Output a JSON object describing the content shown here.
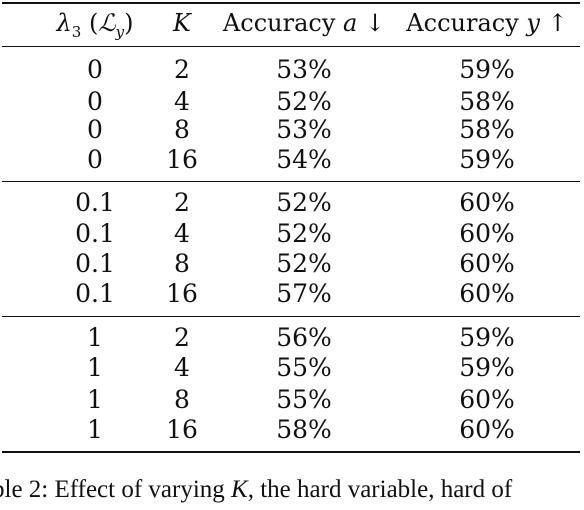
{
  "table": {
    "headers": {
      "col0_lambda": "λ",
      "col0_sub": "3",
      "col0_paren_open": "(",
      "col0_L": "ℒ",
      "col0_L_sub": "y",
      "col0_paren_close": ")",
      "col1": "K",
      "col2_text": "Accuracy",
      "col2_var": "a",
      "col2_arrow": "↓",
      "col3_text": "Accuracy",
      "col3_var": "y",
      "col3_arrow": "↑"
    },
    "groups": [
      {
        "rows": [
          [
            "0",
            "2",
            "53%",
            "59%"
          ],
          [
            "0",
            "4",
            "52%",
            "58%"
          ],
          [
            "0",
            "8",
            "53%",
            "58%"
          ],
          [
            "0",
            "16",
            "54%",
            "59%"
          ]
        ]
      },
      {
        "rows": [
          [
            "0.1",
            "2",
            "52%",
            "60%"
          ],
          [
            "0.1",
            "4",
            "52%",
            "60%"
          ],
          [
            "0.1",
            "8",
            "52%",
            "60%"
          ],
          [
            "0.1",
            "16",
            "57%",
            "60%"
          ]
        ]
      },
      {
        "rows": [
          [
            "1",
            "2",
            "56%",
            "59%"
          ],
          [
            "1",
            "4",
            "55%",
            "59%"
          ],
          [
            "1",
            "8",
            "55%",
            "60%"
          ],
          [
            "1",
            "16",
            "58%",
            "60%"
          ]
        ]
      }
    ]
  },
  "caption": {
    "prefix": "ble 2: Effect of varying ",
    "var": "K",
    "suffix": ", the hard variable, hard of"
  }
}
